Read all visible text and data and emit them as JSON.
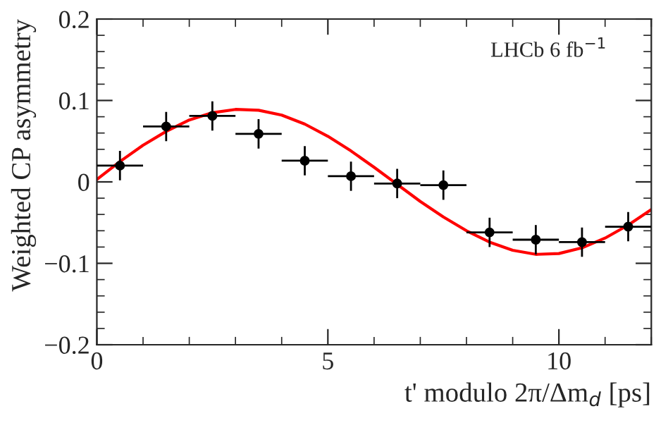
{
  "chart_data": {
    "type": "scatter",
    "xlabel": "t' modulo 2π/Δm$_{d}$ [ps]",
    "ylabel": "Weighted CP asymmetry",
    "annotations": [
      "LHCb 6 fb$^{−1}$"
    ],
    "xlim": [
      0,
      12
    ],
    "ylim": [
      -0.2,
      0.2
    ],
    "xticks": [
      0,
      5,
      10
    ],
    "yticks": [
      -0.2,
      -0.1,
      0,
      0.1,
      0.2
    ],
    "grid": false,
    "legend": false,
    "series": [
      {
        "marker": "circle",
        "color": "#000000",
        "x": [
          0.5,
          1.5,
          2.5,
          3.5,
          4.5,
          5.5,
          6.5,
          7.5,
          8.5,
          9.5,
          10.5,
          11.5
        ],
        "values": [
          0.02,
          0.068,
          0.081,
          0.059,
          0.026,
          0.007,
          -0.002,
          -0.004,
          -0.062,
          -0.071,
          -0.074,
          -0.055
        ],
        "errors": [
          0.018,
          0.018,
          0.018,
          0.018,
          0.018,
          0.018,
          0.018,
          0.018,
          0.018,
          0.018,
          0.018,
          0.018
        ],
        "xerrors": [
          0.5,
          0.5,
          0.5,
          0.5,
          0.5,
          0.5,
          0.5,
          0.5,
          0.5,
          0.5,
          0.5,
          0.5
        ]
      },
      {
        "type": "line",
        "marker": "none",
        "color": "#ff0000",
        "line_style": "solid",
        "x": [
          0,
          0.5,
          1,
          1.5,
          2,
          2.5,
          3,
          3.5,
          4,
          4.5,
          5,
          5.5,
          6,
          6.5,
          7,
          7.5,
          8,
          8.5,
          9,
          9.5,
          10,
          10.5,
          11,
          11.5,
          12
        ],
        "values": [
          0.003,
          0.025,
          0.045,
          0.062,
          0.076,
          0.085,
          0.089,
          0.088,
          0.082,
          0.071,
          0.056,
          0.038,
          0.018,
          -0.003,
          -0.024,
          -0.043,
          -0.06,
          -0.074,
          -0.084,
          -0.089,
          -0.088,
          -0.081,
          -0.069,
          -0.053,
          -0.034
        ]
      }
    ]
  }
}
